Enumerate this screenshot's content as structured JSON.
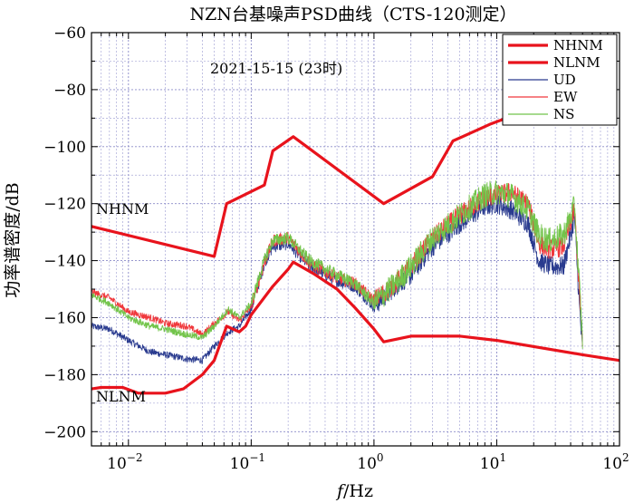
{
  "chart_data": {
    "type": "line",
    "title": "NZN台基噪声PSD曲线（CTS-120测定）",
    "xlabel_italic": "f",
    "xlabel_rest": "/Hz",
    "ylabel": "功率谱密度/dB",
    "x_scale": "log",
    "xlim": [
      0.005,
      100
    ],
    "ylim": [
      -205,
      -60
    ],
    "x_ticks": [
      {
        "value": 0.01,
        "base": "10",
        "exp": "−2"
      },
      {
        "value": 0.1,
        "base": "10",
        "exp": "−1"
      },
      {
        "value": 1,
        "base": "10",
        "exp": "0"
      },
      {
        "value": 10,
        "base": "10",
        "exp": "1"
      },
      {
        "value": 100,
        "base": "10",
        "exp": "2"
      }
    ],
    "y_ticks": [
      -60,
      -80,
      -100,
      -120,
      -140,
      -160,
      -180,
      -200
    ],
    "y_tick_labels": [
      "−60",
      "−80",
      "−100",
      "−120",
      "−140",
      "−160",
      "−180",
      "−200"
    ],
    "grid": true,
    "legend_position": "top-right",
    "annotations": [
      {
        "text": "2021-15-15 (23时)"
      },
      {
        "text": "NHNM"
      },
      {
        "text": "NLNM"
      }
    ],
    "series": [
      {
        "name": "NHNM",
        "color": "#e8131c",
        "x": [
          0.005,
          0.05,
          0.063,
          0.128,
          0.15,
          0.22,
          1.2,
          3.0,
          4.4,
          9.0,
          12.0
        ],
        "y": [
          -128,
          -138.5,
          -120,
          -113.5,
          -101.5,
          -96.5,
          -120,
          -110.5,
          -98,
          -92,
          -90
        ]
      },
      {
        "name": "NLNM",
        "color": "#e8131c",
        "x": [
          0.005,
          0.006,
          0.009,
          0.012,
          0.02,
          0.028,
          0.04,
          0.05,
          0.063,
          0.08,
          0.09,
          0.1,
          0.15,
          0.2,
          0.22,
          0.32,
          0.5,
          0.7,
          1.0,
          1.2,
          2.0,
          5.0,
          10,
          50,
          100
        ],
        "y": [
          -185,
          -184.5,
          -184.5,
          -186.5,
          -186.5,
          -185,
          -180,
          -175,
          -163,
          -165,
          -163,
          -159,
          -149,
          -143,
          -140.5,
          -144.5,
          -150,
          -156.5,
          -164,
          -168.5,
          -166.5,
          -166.5,
          -168,
          -173,
          -175
        ]
      },
      {
        "name": "UD",
        "color": "#2a3b8f",
        "x": [
          0.005,
          0.007,
          0.01,
          0.015,
          0.02,
          0.03,
          0.04,
          0.05,
          0.065,
          0.08,
          0.1,
          0.13,
          0.15,
          0.2,
          0.3,
          0.5,
          0.7,
          1.0,
          1.5,
          2.0,
          3.0,
          5.0,
          8.0,
          10,
          13,
          18,
          22,
          27,
          35,
          43,
          47,
          50
        ],
        "y": [
          -163,
          -164,
          -168,
          -172,
          -173,
          -174.5,
          -175,
          -170,
          -165,
          -163,
          -157,
          -140,
          -135,
          -134,
          -142,
          -147,
          -149,
          -156,
          -149,
          -145,
          -135,
          -127,
          -121,
          -120,
          -122,
          -127,
          -140,
          -142,
          -142,
          -125,
          -155,
          -172
        ]
      },
      {
        "name": "EW",
        "color": "#f0383c",
        "x": [
          0.005,
          0.007,
          0.01,
          0.015,
          0.02,
          0.03,
          0.04,
          0.05,
          0.065,
          0.08,
          0.1,
          0.13,
          0.15,
          0.2,
          0.3,
          0.5,
          0.7,
          1.0,
          1.5,
          2.0,
          3.0,
          5.0,
          8.0,
          10,
          13,
          18,
          22,
          27,
          35,
          43,
          47,
          50
        ],
        "y": [
          -151,
          -153,
          -158,
          -160,
          -162,
          -163,
          -166,
          -162,
          -158,
          -161,
          -156,
          -140,
          -133,
          -132,
          -141,
          -146,
          -148,
          -154,
          -148,
          -142,
          -132,
          -124,
          -118,
          -117,
          -116,
          -120,
          -134,
          -136,
          -135,
          -122,
          -150,
          -170
        ]
      },
      {
        "name": "NS",
        "color": "#72c44a",
        "x": [
          0.005,
          0.007,
          0.01,
          0.015,
          0.02,
          0.03,
          0.04,
          0.05,
          0.065,
          0.08,
          0.1,
          0.13,
          0.15,
          0.2,
          0.3,
          0.5,
          0.7,
          1.0,
          1.5,
          2.0,
          3.0,
          5.0,
          8.0,
          10,
          13,
          18,
          22,
          27,
          35,
          43,
          47,
          50
        ],
        "y": [
          -152,
          -155,
          -160,
          -163,
          -164,
          -166,
          -167,
          -163,
          -157,
          -160,
          -155,
          -139,
          -133,
          -132,
          -140,
          -145,
          -148,
          -155,
          -148,
          -142,
          -132,
          -124,
          -117,
          -116,
          -117,
          -122,
          -131,
          -133,
          -131,
          -121,
          -148,
          -168
        ]
      }
    ]
  }
}
